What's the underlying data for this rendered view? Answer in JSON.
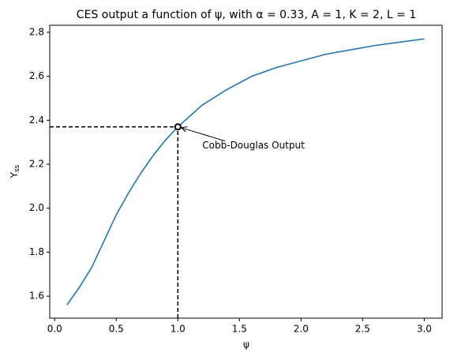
{
  "chart_data": {
    "type": "line",
    "title": "CES output a function of ψ, with α = 0.33, A = 1, K = 2, L = 1",
    "xlabel": "ψ",
    "ylabel": "Y",
    "ylabel_sub": "ss",
    "x": [
      0.1,
      0.2,
      0.3,
      0.4,
      0.5,
      0.6,
      0.7,
      0.8,
      0.9,
      1.0,
      1.2,
      1.4,
      1.6,
      1.8,
      2.0,
      2.2,
      2.4,
      2.6,
      2.8,
      3.0
    ],
    "values": [
      1.56,
      1.64,
      1.73,
      1.85,
      1.97,
      2.07,
      2.16,
      2.24,
      2.31,
      2.37,
      2.47,
      2.54,
      2.6,
      2.64,
      2.67,
      2.7,
      2.72,
      2.74,
      2.755,
      2.77
    ],
    "color": "#1f77b4",
    "marker": {
      "x": 1.0,
      "y": 2.37
    },
    "annotation": "Cobb-Douglas Output",
    "xlim": [
      -0.04,
      3.145
    ],
    "ylim": [
      1.5,
      2.832
    ],
    "xticks": [
      {
        "value": 0,
        "label": "0.0"
      },
      0.5,
      {
        "value": 1,
        "label": "1.0"
      },
      1.5,
      {
        "value": 2,
        "label": "2.0"
      },
      2.5,
      {
        "value": 3,
        "label": "3.0"
      }
    ],
    "yticks": [
      1.6,
      1.8,
      {
        "value": 2,
        "label": "2.0"
      },
      2.2,
      2.4,
      2.6,
      2.8
    ]
  }
}
